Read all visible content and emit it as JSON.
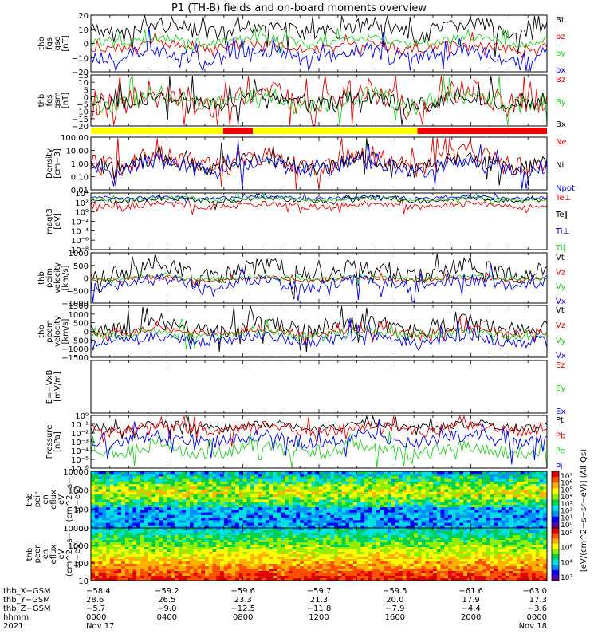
{
  "title": "P1  (TH-B) fields and on-board moments overview",
  "colors": {
    "black": "#000000",
    "red": "#e60000",
    "green": "#22cc22",
    "blue": "#0000ee",
    "yellow": "#ffff00",
    "barred": "#ee0000"
  },
  "chart_data": [
    {
      "type": "line",
      "panel": "fgs_gse",
      "ylabel": [
        "thb",
        "fgs",
        "gse",
        "[nT]"
      ],
      "ylim": [
        -20,
        20
      ],
      "yticks": [
        "20",
        "10",
        "0",
        "−10",
        "−20"
      ],
      "legend": [
        {
          "label": "Bt",
          "color": "black"
        },
        {
          "label": "bz",
          "color": "red"
        },
        {
          "label": "by",
          "color": "green"
        },
        {
          "label": "bx",
          "color": "blue"
        }
      ]
    },
    {
      "type": "line",
      "panel": "fgs_gsm",
      "ylabel": [
        "thb",
        "fgs",
        "gsm",
        "[nT]"
      ],
      "ylim": [
        -20,
        15
      ],
      "yticks": [
        "15",
        "10",
        "5",
        "0",
        "−5",
        "−10",
        "−15",
        "−20"
      ],
      "legend": [
        {
          "label": "Bz",
          "color": "red"
        },
        {
          "label": "By",
          "color": "green"
        },
        {
          "label": "Bx",
          "color": "black"
        }
      ]
    },
    {
      "type": "bar",
      "panel": "mode_bar",
      "segments": [
        {
          "from": 0,
          "to": 0.29,
          "color": "yellow"
        },
        {
          "from": 0.29,
          "to": 0.355,
          "color": "barred"
        },
        {
          "from": 0.355,
          "to": 0.716,
          "color": "yellow"
        },
        {
          "from": 0.716,
          "to": 1,
          "color": "barred"
        }
      ]
    },
    {
      "type": "line",
      "panel": "density",
      "ylabel": [
        "Density",
        "[cm−3]"
      ],
      "ylim": [
        0.01,
        100
      ],
      "yscale": "log",
      "yticks": [
        "100.00",
        "10.00",
        "1.00",
        "0.10",
        "0.01"
      ],
      "legend": [
        {
          "label": "Ne",
          "color": "red"
        },
        {
          "label": "Ni",
          "color": "black"
        },
        {
          "label": "Npot",
          "color": "blue"
        }
      ]
    },
    {
      "type": "line",
      "panel": "temperature",
      "ylabel": [
        "magt3",
        "[eV]"
      ],
      "ylim": [
        1e-08,
        10000
      ],
      "yscale": "log",
      "yticks": [
        "10⁴",
        "10²",
        "10⁰",
        "10⁻²",
        "10⁻⁴",
        "10⁻⁶",
        "10⁻⁸"
      ],
      "legend": [
        {
          "label": "Te⊥",
          "color": "red"
        },
        {
          "label": "Te∥",
          "color": "black"
        },
        {
          "label": "Ti⊥",
          "color": "blue"
        },
        {
          "label": "Ti∥",
          "color": "green"
        }
      ]
    },
    {
      "type": "line",
      "panel": "peim_velocity",
      "ylabel": [
        "thb",
        "peim",
        "velocity",
        "[km/s]"
      ],
      "ylim": [
        -1000,
        1000
      ],
      "yticks": [
        "1000",
        "500",
        "0",
        "−500",
        "−1000"
      ],
      "legend": [
        {
          "label": "Vt",
          "color": "black"
        },
        {
          "label": "Vz",
          "color": "red"
        },
        {
          "label": "Vy",
          "color": "green"
        },
        {
          "label": "Vx",
          "color": "blue"
        }
      ]
    },
    {
      "type": "line",
      "panel": "peem_velocity",
      "ylabel": [
        "thb",
        "peem",
        "velocity",
        "[km/s]"
      ],
      "ylim": [
        -1500,
        1500
      ],
      "yticks": [
        "1500",
        "1000",
        "500",
        "0",
        "−500",
        "−1000",
        "−1500"
      ],
      "legend": [
        {
          "label": "Vt",
          "color": "black"
        },
        {
          "label": "Vz",
          "color": "red"
        },
        {
          "label": "Vy",
          "color": "green"
        },
        {
          "label": "Vx",
          "color": "blue"
        }
      ]
    },
    {
      "type": "line",
      "panel": "efield",
      "ylabel": [
        "E=−VxB",
        "[mV/m]"
      ],
      "legend": [
        {
          "label": "Ez",
          "color": "red"
        },
        {
          "label": "Ey",
          "color": "green"
        },
        {
          "label": "Ex",
          "color": "blue"
        }
      ]
    },
    {
      "type": "line",
      "panel": "pressure",
      "ylabel": [
        "Pressure",
        "[nPa]"
      ],
      "ylim": [
        1e-06,
        1
      ],
      "yscale": "log",
      "yticks": [
        "10⁰",
        "10⁻¹",
        "10⁻²",
        "10⁻³",
        "10⁻⁴",
        "10⁻⁵",
        "10⁻⁶"
      ],
      "legend": [
        {
          "label": "Pt",
          "color": "black"
        },
        {
          "label": "Pb",
          "color": "red"
        },
        {
          "label": "Pe",
          "color": "green"
        },
        {
          "label": "Pi",
          "color": "blue"
        }
      ]
    },
    {
      "type": "heatmap",
      "panel": "peir_eflux",
      "ylabel": [
        "thb",
        "peir",
        "en",
        "eflux",
        "eV",
        "(cm^2−s−",
        "sr−eV)"
      ],
      "yscale": "log",
      "yticks": [
        "10000",
        "1000",
        "100",
        "10"
      ],
      "colorbar": {
        "ticks": [
          "10⁷",
          "10⁶",
          "10⁵",
          "10⁴",
          "10³",
          "10²",
          "10¹",
          "10⁰"
        ]
      }
    },
    {
      "type": "heatmap",
      "panel": "peer_eflux",
      "ylabel": [
        "thb",
        "peer",
        "en",
        "eflux",
        "eV",
        "(cm^2−s−",
        "sr−eV)"
      ],
      "yscale": "log",
      "yticks": [
        "10000",
        "1000",
        "100",
        "10"
      ],
      "colorbar": {
        "ticks": [
          "10⁸",
          "10⁶",
          "10⁴",
          "10²"
        ],
        "label": "[eV/(cm^2−s−sr−eV)]  (All Qs)"
      }
    }
  ],
  "xaxis": {
    "rows": [
      {
        "label": "thb_X−GSM",
        "values": [
          "−58.4",
          "−59.2",
          "−59.6",
          "−59.7",
          "−59.5",
          "−61.6",
          "−63.0"
        ]
      },
      {
        "label": "thb_Y−GSM",
        "values": [
          "28.6",
          "26.5",
          "23.3",
          "21.3",
          "20.0",
          "17.9",
          "17.3"
        ]
      },
      {
        "label": "thb_Z−GSM",
        "values": [
          "−5.7",
          "−9.0",
          "−12.5",
          "−11.8",
          "−7.9",
          "−4.4",
          "−3.6"
        ]
      },
      {
        "label": "hhmm",
        "values": [
          "0000",
          "0400",
          "0800",
          "1200",
          "1600",
          "2000",
          "0000"
        ]
      },
      {
        "label": "2021",
        "values": [
          "Nov 17",
          "",
          "",
          "",
          "",
          "",
          "Nov 18"
        ]
      }
    ]
  }
}
